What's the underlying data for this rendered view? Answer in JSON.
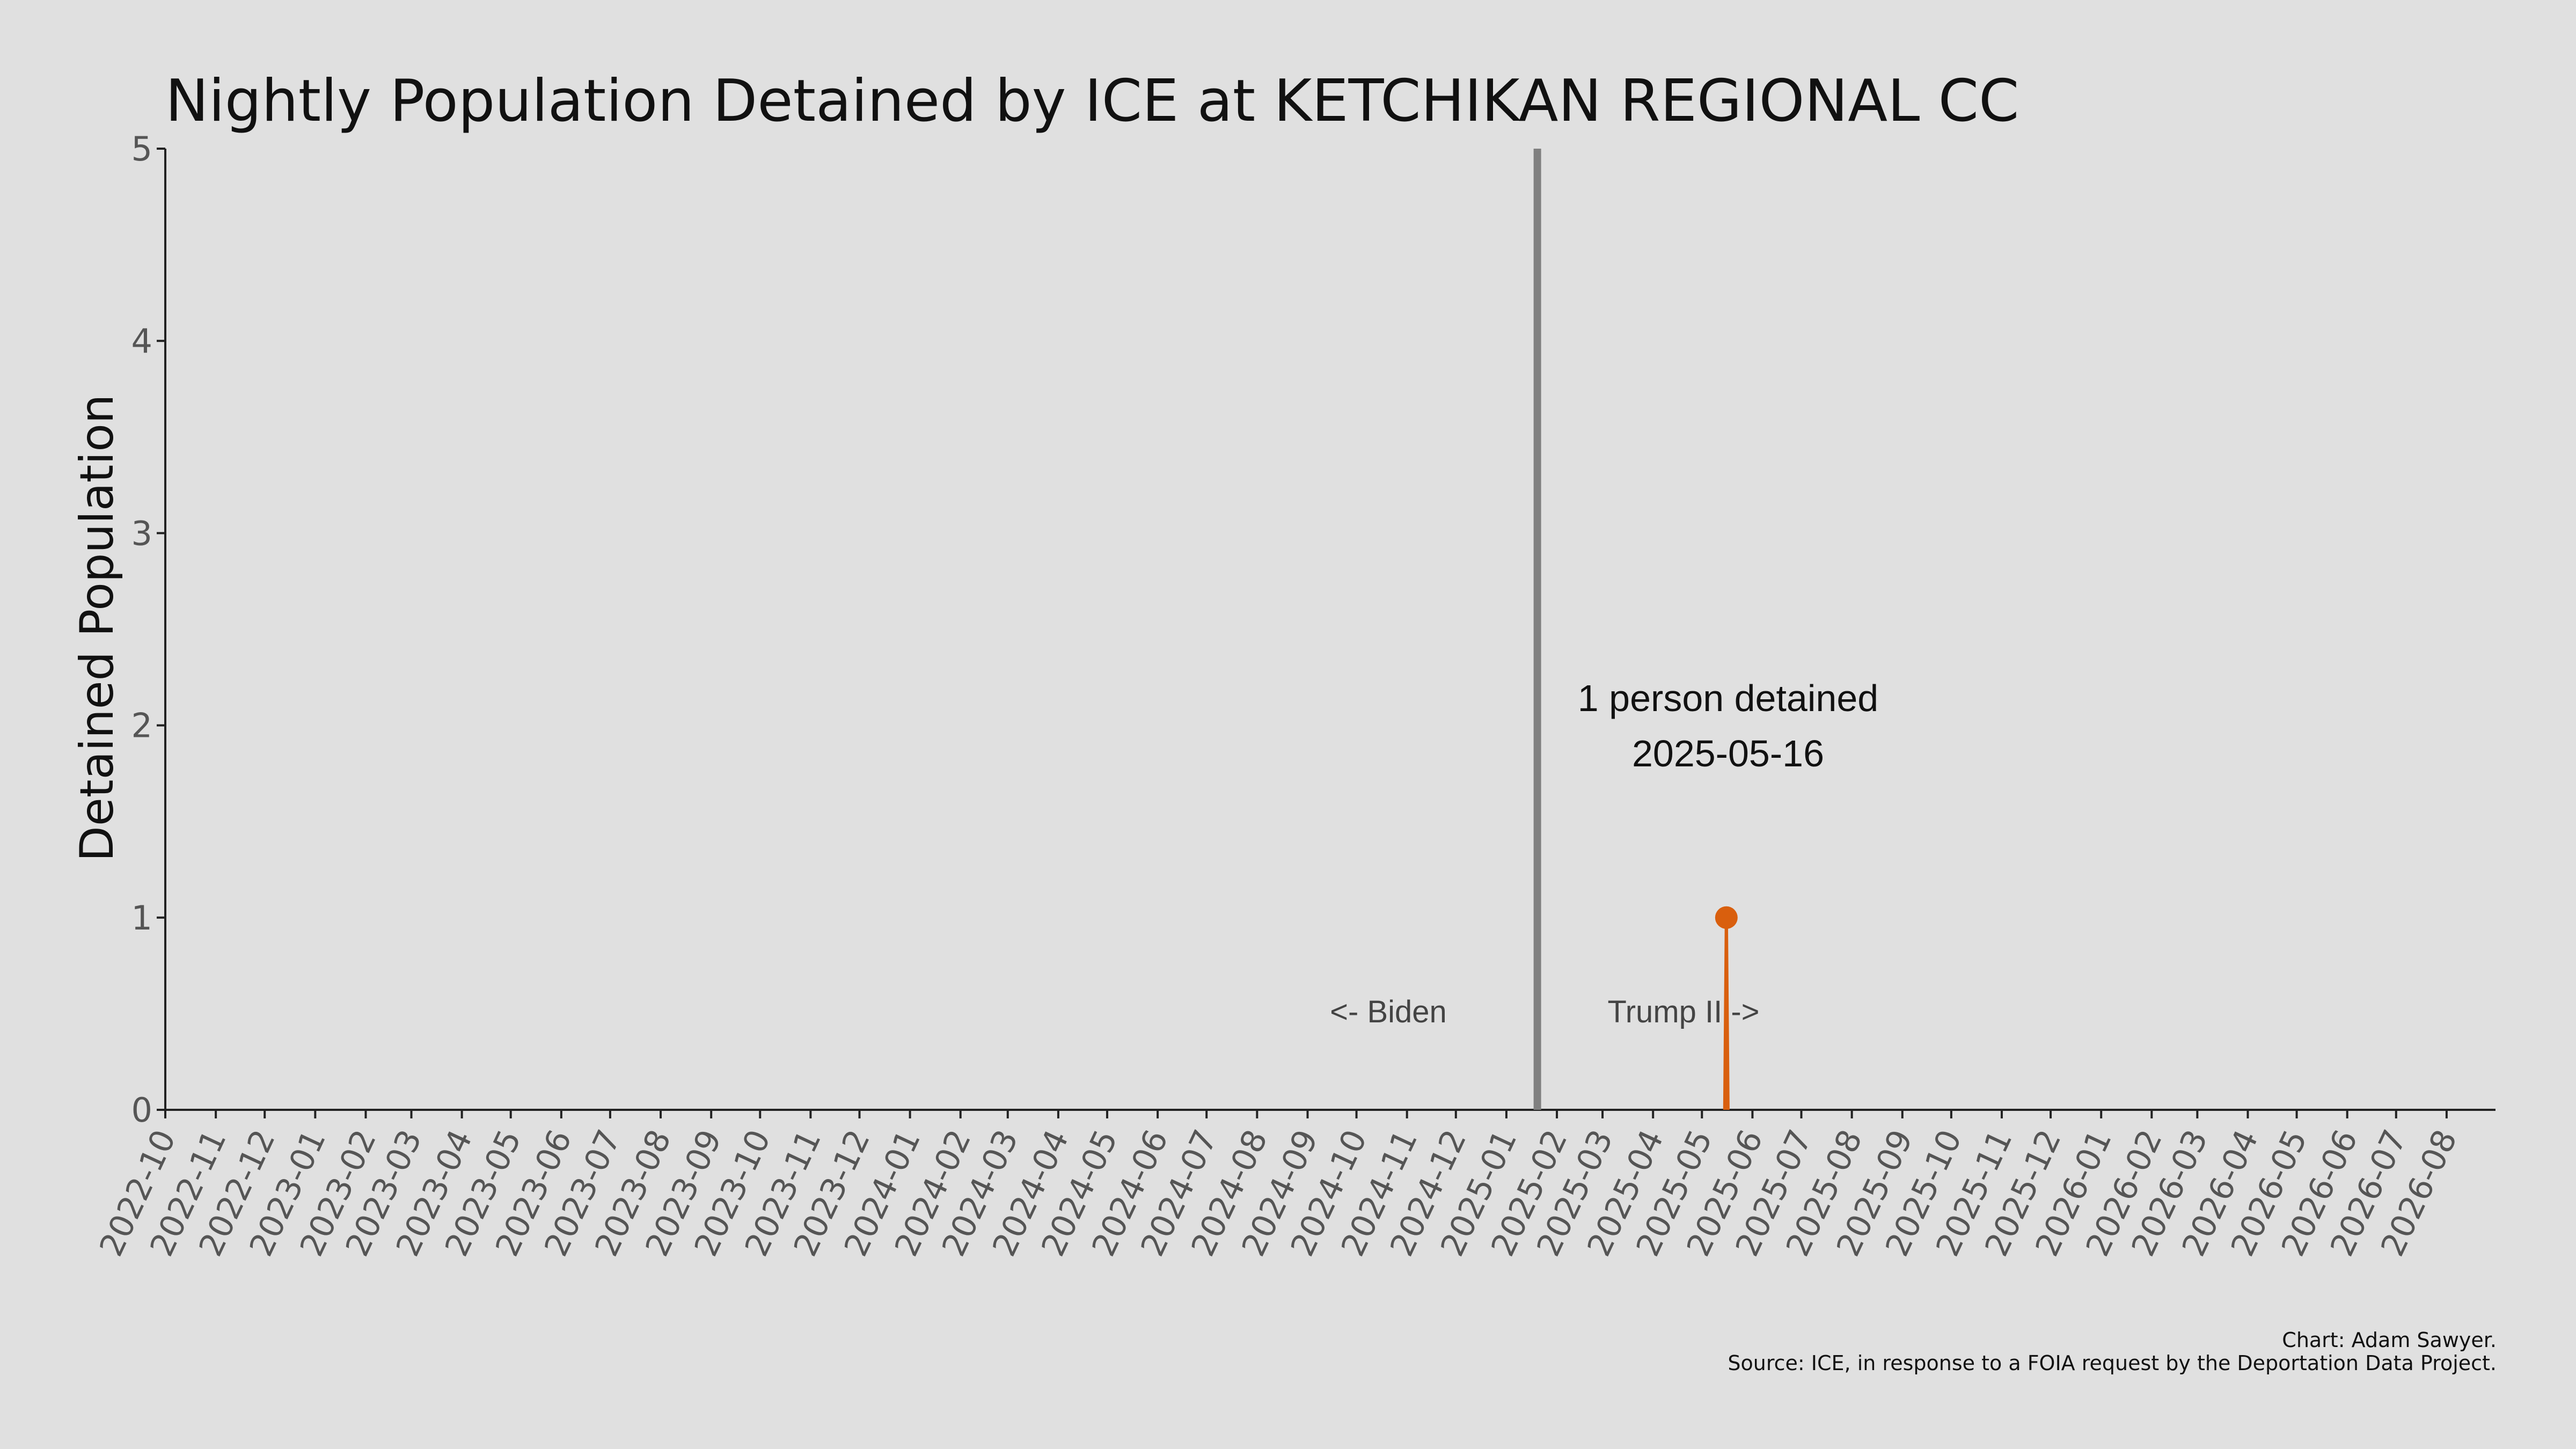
{
  "chart_data": {
    "type": "line",
    "title": "Nightly Population Detained by ICE at KETCHIKAN REGIONAL CC",
    "xlabel": "",
    "ylabel": "Detained Population",
    "ylim": [
      0,
      5
    ],
    "yticks": [
      "0",
      "1",
      "2",
      "3",
      "4",
      "5"
    ],
    "xlim": [
      "2022-10-01",
      "2026-08-31"
    ],
    "xtick_labels": [
      "2022-10",
      "2022-11",
      "2022-12",
      "2023-01",
      "2023-02",
      "2023-03",
      "2023-04",
      "2023-05",
      "2023-06",
      "2023-07",
      "2023-08",
      "2023-09",
      "2023-10",
      "2023-11",
      "2023-12",
      "2024-01",
      "2024-02",
      "2024-03",
      "2024-04",
      "2024-05",
      "2024-06",
      "2024-07",
      "2024-08",
      "2024-09",
      "2024-10",
      "2024-11",
      "2024-12",
      "2025-01",
      "2025-02",
      "2025-03",
      "2025-04",
      "2025-05",
      "2025-06",
      "2025-07",
      "2025-08",
      "2025-09",
      "2025-10",
      "2025-11",
      "2025-12",
      "2026-01",
      "2026-02",
      "2026-03",
      "2026-04",
      "2026-05",
      "2026-06",
      "2026-07",
      "2026-08"
    ],
    "series": [
      {
        "color": "#d95f0e",
        "points": [
          {
            "x": "2025-05-16",
            "y": 1
          }
        ]
      }
    ],
    "vline": {
      "x": "2025-01-20",
      "color": "#808080"
    },
    "annotation": {
      "line1": "1 person detained",
      "line2": "2025-05-16"
    },
    "era_labels": {
      "left": "<- Biden",
      "right": "Trump II ->"
    },
    "grid": false
  },
  "credits": {
    "line1": "Chart: Adam Sawyer.",
    "line2": "Source: ICE, in response to a FOIA request by the Deportation Data Project."
  }
}
